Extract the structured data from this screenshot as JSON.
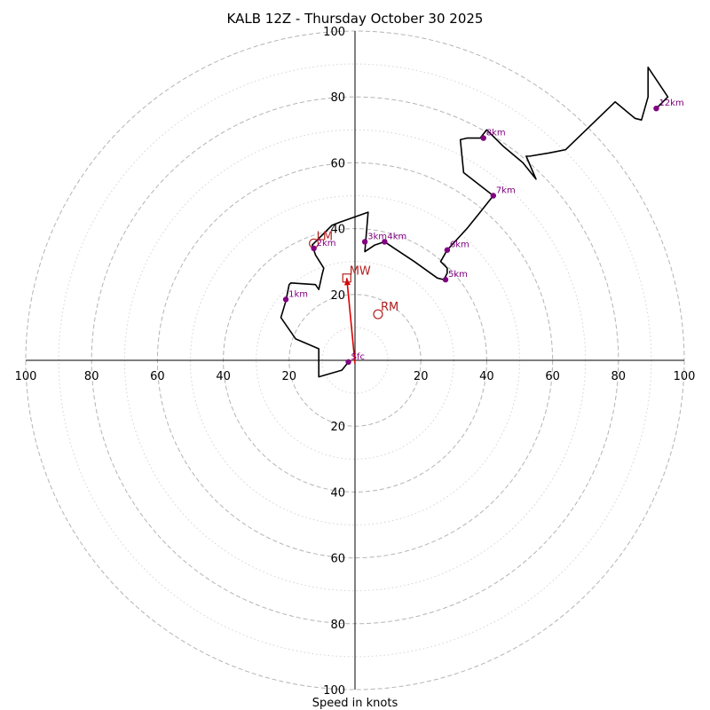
{
  "chart_data": {
    "type": "hodograph",
    "title": "KALB 12Z - Thursday October 30 2025",
    "xlabel": "Speed in knots",
    "xlim": [
      -100,
      100
    ],
    "ylim": [
      -100,
      100
    ],
    "ring_major": [
      20,
      40,
      60,
      80,
      100
    ],
    "ring_minor": [
      10,
      30,
      50,
      70,
      90
    ],
    "x_tick_labels": [
      {
        "v": -100,
        "label": "100"
      },
      {
        "v": -80,
        "label": "80"
      },
      {
        "v": -60,
        "label": "60"
      },
      {
        "v": -40,
        "label": "40"
      },
      {
        "v": -20,
        "label": "20"
      },
      {
        "v": 20,
        "label": "20"
      },
      {
        "v": 40,
        "label": "40"
      },
      {
        "v": 60,
        "label": "60"
      },
      {
        "v": 80,
        "label": "80"
      },
      {
        "v": 100,
        "label": "100"
      }
    ],
    "y_tick_labels": [
      {
        "v": 100,
        "label": "100"
      },
      {
        "v": 80,
        "label": "80"
      },
      {
        "v": 60,
        "label": "60"
      },
      {
        "v": 40,
        "label": "40"
      },
      {
        "v": 20,
        "label": "20"
      },
      {
        "v": -20,
        "label": "20"
      },
      {
        "v": -40,
        "label": "40"
      },
      {
        "v": -60,
        "label": "60"
      },
      {
        "v": -80,
        "label": "80"
      },
      {
        "v": -100,
        "label": "100"
      }
    ],
    "trace": [
      [
        -2,
        -0.5
      ],
      [
        -4,
        -3
      ],
      [
        -11,
        -5
      ],
      [
        -11,
        3.5
      ],
      [
        -18,
        6.5
      ],
      [
        -22.5,
        13
      ],
      [
        -21,
        18
      ],
      [
        -20,
        23
      ],
      [
        -19.5,
        23.5
      ],
      [
        -12,
        23
      ],
      [
        -11,
        21.5
      ],
      [
        -10,
        26
      ],
      [
        -9.5,
        28
      ],
      [
        -12,
        32
      ],
      [
        -13,
        35
      ],
      [
        -11,
        37
      ],
      [
        -10,
        38
      ],
      [
        -7,
        41
      ],
      [
        -4.5,
        42
      ],
      [
        4,
        45
      ],
      [
        3,
        33
      ],
      [
        6,
        35
      ],
      [
        9,
        36
      ],
      [
        12,
        34
      ],
      [
        18,
        30
      ],
      [
        25,
        25
      ],
      [
        27,
        24.5
      ],
      [
        28,
        26.5
      ],
      [
        28,
        28
      ],
      [
        26,
        30
      ],
      [
        28,
        33.5
      ],
      [
        34,
        40
      ],
      [
        38,
        45
      ],
      [
        42,
        50
      ],
      [
        33,
        57
      ],
      [
        32,
        67
      ],
      [
        34,
        67.5
      ],
      [
        38,
        67.5
      ],
      [
        40,
        70
      ],
      [
        45,
        65
      ],
      [
        51,
        60
      ],
      [
        55,
        55
      ],
      [
        52,
        62
      ],
      [
        53,
        62
      ],
      [
        59,
        63
      ],
      [
        64,
        64
      ],
      [
        79,
        78.5
      ],
      [
        85,
        73.5
      ],
      [
        87,
        73
      ],
      [
        89,
        80
      ],
      [
        89,
        89
      ],
      [
        95,
        80
      ],
      [
        91.5,
        76.5
      ]
    ],
    "height_markers": [
      {
        "label": "Sfc",
        "u": -2,
        "v": -0.5
      },
      {
        "label": "1km",
        "u": -21,
        "v": 18.5
      },
      {
        "label": "2km",
        "u": -12.5,
        "v": 34
      },
      {
        "label": "3km",
        "u": 3,
        "v": 36
      },
      {
        "label": "4km",
        "u": 9,
        "v": 36
      },
      {
        "label": "5km",
        "u": 27.5,
        "v": 24.5
      },
      {
        "label": "6km",
        "u": 28,
        "v": 33.5
      },
      {
        "label": "7km",
        "u": 42,
        "v": 50
      },
      {
        "label": "8km",
        "u": 39,
        "v": 67.5
      },
      {
        "label": "12km",
        "u": 91.5,
        "v": 76.5
      }
    ],
    "storm_motion": [
      {
        "label": "LM",
        "u": -12.5,
        "v": 35.5,
        "marker": "circle"
      },
      {
        "label": "MW",
        "u": -2.5,
        "v": 25,
        "marker": "square"
      },
      {
        "label": "RM",
        "u": 7,
        "v": 14,
        "marker": "circle"
      }
    ],
    "shear_vector": {
      "from": [
        0,
        -1
      ],
      "to": [
        -2.5,
        25
      ]
    },
    "colors": {
      "trace": "#000000",
      "markers": "#800080",
      "storm_motion": "#b22222",
      "shear_vector": "#dd0000",
      "grid_major": "#b4b4b4",
      "grid_minor": "#d4d4d4"
    }
  }
}
